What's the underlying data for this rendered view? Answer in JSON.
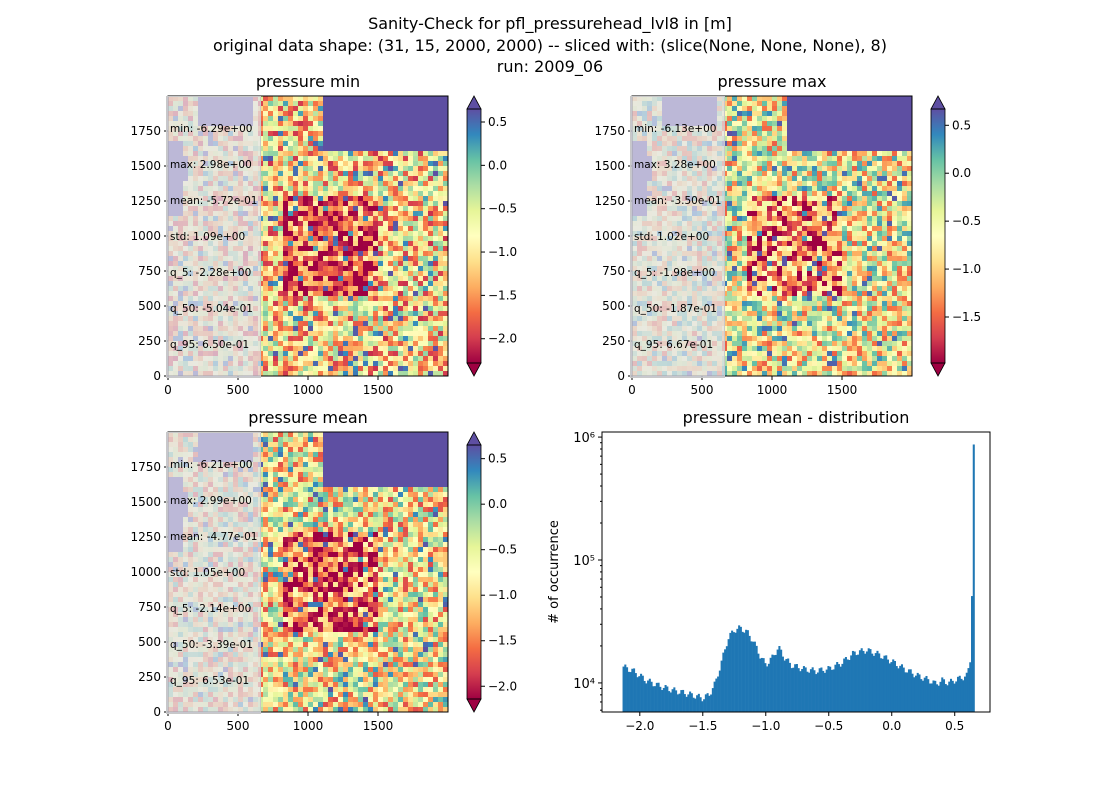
{
  "figure": {
    "suptitle_lines": [
      "Sanity-Check for pfl_pressurehead_lvl8 in [m]",
      "original data shape: (31, 15, 2000, 2000) -- sliced with: (slice(None, None, None), 8)",
      "run: 2009_06"
    ]
  },
  "colors": {
    "hist_bar": "#1f77b4",
    "colormap": "Spectral"
  },
  "chart_data": [
    {
      "type": "heatmap",
      "title": "pressure min",
      "colormap": "Spectral",
      "xlim": [
        0,
        2000
      ],
      "ylim": [
        0,
        2000
      ],
      "xticks": [
        "0",
        "500",
        "1000",
        "1500"
      ],
      "yticks": [
        "0",
        "250",
        "500",
        "750",
        "1000",
        "1250",
        "1500",
        "1750"
      ],
      "colorbar": {
        "range": [
          -2.28,
          0.65
        ],
        "ticks": [
          "0.5",
          "0.0",
          "−0.5",
          "−1.0",
          "−1.5",
          "−2.0"
        ],
        "tick_values": [
          0.5,
          0.0,
          -0.5,
          -1.0,
          -1.5,
          -2.0
        ],
        "extend": "both"
      },
      "stats": [
        "min: -6.29e+00",
        "max: 2.98e+00",
        "mean: -5.72e-01",
        "std: 1.09e+00",
        "q_5: -2.28e+00",
        "q_50: -5.04e-01",
        "q_95: 6.50e-01"
      ]
    },
    {
      "type": "heatmap",
      "title": "pressure max",
      "colormap": "Spectral",
      "xlim": [
        0,
        2000
      ],
      "ylim": [
        0,
        2000
      ],
      "xticks": [
        "0",
        "500",
        "1000",
        "1500"
      ],
      "yticks": [
        "0",
        "250",
        "500",
        "750",
        "1000",
        "1250",
        "1500",
        "1750"
      ],
      "colorbar": {
        "range": [
          -1.98,
          0.67
        ],
        "ticks": [
          "0.5",
          "0.0",
          "−0.5",
          "−1.0",
          "−1.5"
        ],
        "tick_values": [
          0.5,
          0.0,
          -0.5,
          -1.0,
          -1.5
        ],
        "extend": "both"
      },
      "stats": [
        "min: -6.13e+00",
        "max: 3.28e+00",
        "mean: -3.50e-01",
        "std: 1.02e+00",
        "q_5: -1.98e+00",
        "q_50: -1.87e-01",
        "q_95: 6.67e-01"
      ]
    },
    {
      "type": "heatmap",
      "title": "pressure mean",
      "colormap": "Spectral",
      "xlim": [
        0,
        2000
      ],
      "ylim": [
        0,
        2000
      ],
      "xticks": [
        "0",
        "500",
        "1000",
        "1500"
      ],
      "yticks": [
        "0",
        "250",
        "500",
        "750",
        "1000",
        "1250",
        "1500",
        "1750"
      ],
      "colorbar": {
        "range": [
          -2.14,
          0.65
        ],
        "ticks": [
          "0.5",
          "0.0",
          "−0.5",
          "−1.0",
          "−1.5",
          "−2.0"
        ],
        "tick_values": [
          0.5,
          0.0,
          -0.5,
          -1.0,
          -1.5,
          -2.0
        ],
        "extend": "both"
      },
      "stats": [
        "min: -6.21e+00",
        "max: 2.99e+00",
        "mean: -4.77e-01",
        "std: 1.05e+00",
        "q_5: -2.14e+00",
        "q_50: -3.39e-01",
        "q_95: 6.53e-01"
      ]
    },
    {
      "type": "bar",
      "title": "pressure mean - distribution",
      "ylabel": "# of occurrence",
      "xlabel": "",
      "yscale": "log",
      "xlim": [
        -2.3,
        0.78
      ],
      "ylim": [
        5800,
        1100000
      ],
      "xticks": [
        "−2.0",
        "−1.5",
        "−1.0",
        "−0.5",
        "0.0",
        "0.5"
      ],
      "xtick_values": [
        -2.0,
        -1.5,
        -1.0,
        -0.5,
        0.0,
        0.5
      ],
      "yticks": [
        "10⁴",
        "10⁵",
        "10⁶"
      ],
      "ytick_values": [
        10000,
        100000,
        1000000
      ],
      "histogram_points": [
        {
          "x": -2.13,
          "y": 13500
        },
        {
          "x": -2.05,
          "y": 12500
        },
        {
          "x": -1.95,
          "y": 10500
        },
        {
          "x": -1.85,
          "y": 9500
        },
        {
          "x": -1.75,
          "y": 8800
        },
        {
          "x": -1.65,
          "y": 8300
        },
        {
          "x": -1.55,
          "y": 7800
        },
        {
          "x": -1.5,
          "y": 7500
        },
        {
          "x": -1.45,
          "y": 8000
        },
        {
          "x": -1.4,
          "y": 10000
        },
        {
          "x": -1.35,
          "y": 15000
        },
        {
          "x": -1.3,
          "y": 23000
        },
        {
          "x": -1.25,
          "y": 27000
        },
        {
          "x": -1.2,
          "y": 28000
        },
        {
          "x": -1.15,
          "y": 26000
        },
        {
          "x": -1.1,
          "y": 22000
        },
        {
          "x": -1.05,
          "y": 17000
        },
        {
          "x": -1.0,
          "y": 14000
        },
        {
          "x": -0.95,
          "y": 16000
        },
        {
          "x": -0.9,
          "y": 19500
        },
        {
          "x": -0.85,
          "y": 16000
        },
        {
          "x": -0.8,
          "y": 14000
        },
        {
          "x": -0.7,
          "y": 13000
        },
        {
          "x": -0.6,
          "y": 12500
        },
        {
          "x": -0.5,
          "y": 13000
        },
        {
          "x": -0.4,
          "y": 14500
        },
        {
          "x": -0.3,
          "y": 17500
        },
        {
          "x": -0.2,
          "y": 18500
        },
        {
          "x": -0.1,
          "y": 17000
        },
        {
          "x": 0.0,
          "y": 15000
        },
        {
          "x": 0.1,
          "y": 13000
        },
        {
          "x": 0.2,
          "y": 11500
        },
        {
          "x": 0.3,
          "y": 10500
        },
        {
          "x": 0.35,
          "y": 9800
        },
        {
          "x": 0.4,
          "y": 10500
        },
        {
          "x": 0.45,
          "y": 10000
        },
        {
          "x": 0.5,
          "y": 10500
        },
        {
          "x": 0.55,
          "y": 11000
        },
        {
          "x": 0.6,
          "y": 11500
        },
        {
          "x": 0.625,
          "y": 16000
        },
        {
          "x": 0.635,
          "y": 38000
        },
        {
          "x": 0.645,
          "y": 850000
        }
      ],
      "bin_width": 0.0139
    }
  ]
}
